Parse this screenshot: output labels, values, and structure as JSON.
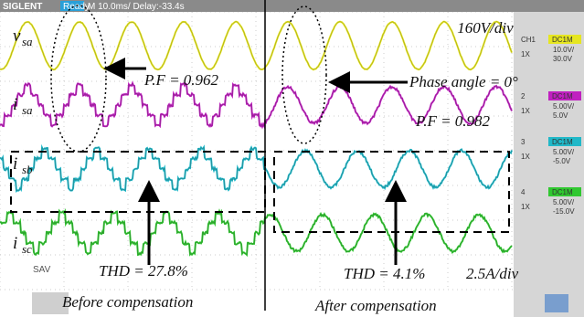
{
  "header": {
    "brand": "SIGLENT",
    "status": "Ready",
    "timebase": "M 10.0ms/ Delay:-33.4s"
  },
  "channels": [
    {
      "symbol": "v",
      "sub": "sa",
      "tag": "CH1",
      "coupling": "DC1M",
      "probe": "1X",
      "scale": "10.0V/",
      "offset": "30.0V"
    },
    {
      "symbol": "i",
      "sub": "sa",
      "tag": "2",
      "coupling": "DC1M",
      "probe": "1X",
      "scale": "5.00V/",
      "offset": "5.0V"
    },
    {
      "symbol": "i",
      "sub": "sb",
      "tag": "3",
      "coupling": "DC1M",
      "probe": "1X",
      "scale": "5.00V/",
      "offset": "-5.0V"
    },
    {
      "symbol": "i",
      "sub": "sc",
      "tag": "4",
      "coupling": "DC1M",
      "probe": "1X",
      "scale": "5.00V/",
      "offset": "-15.0V"
    }
  ],
  "save_label": "SAV",
  "annotations": {
    "voltage_scale": "160V/div",
    "pf_before": "P.F = 0.962",
    "phase": "Phase angle = 0°",
    "pf_after": "P.F = 0.982",
    "thd_before": "THD = 27.8%",
    "thd_after": "THD = 4.1%",
    "current_scale": "2.5A/div",
    "before": "Before compensation",
    "after": "After compensation"
  }
}
